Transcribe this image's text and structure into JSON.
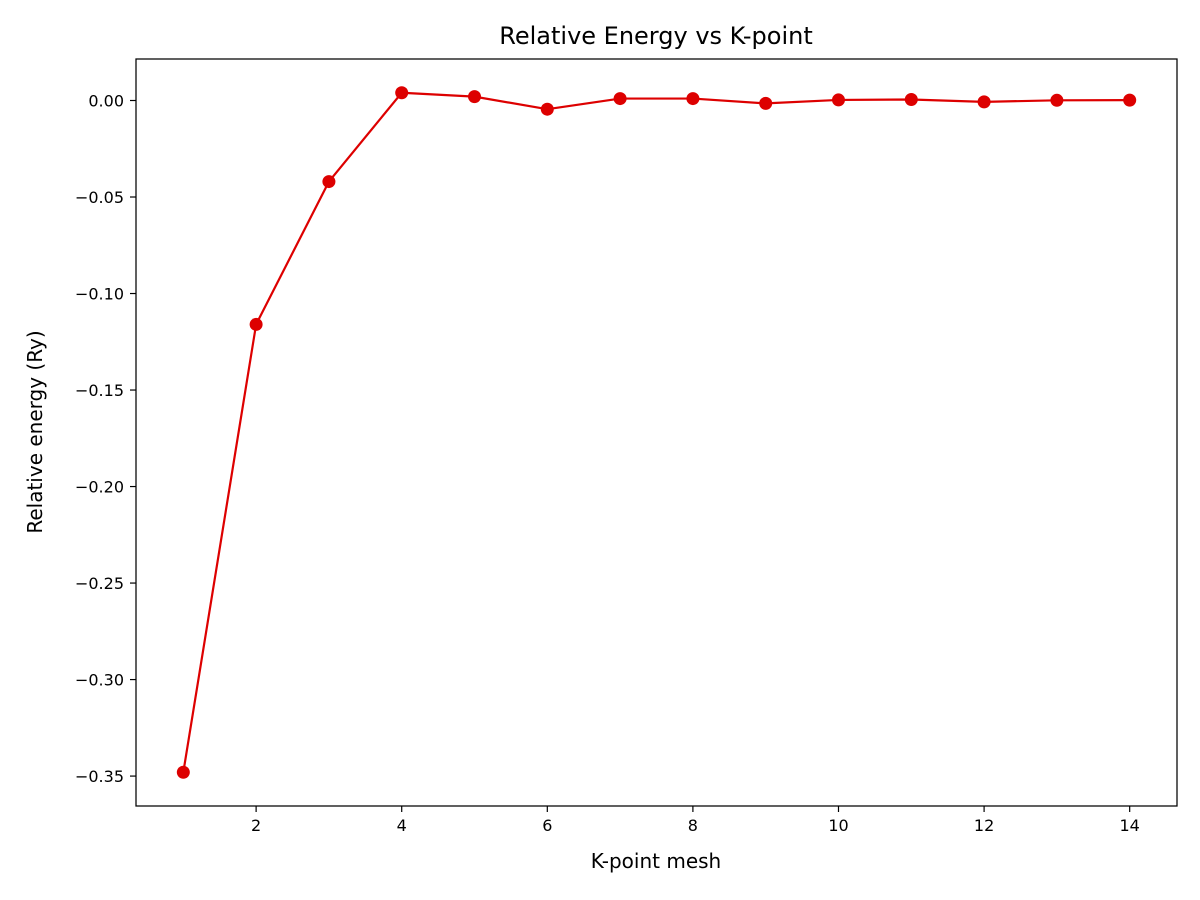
{
  "chart_data": {
    "type": "line",
    "title": "Relative Energy vs K-point",
    "xlabel": "K-point mesh",
    "ylabel": "Relative energy (Ry)",
    "x": [
      1,
      2,
      3,
      4,
      5,
      6,
      7,
      8,
      9,
      10,
      11,
      12,
      13,
      14
    ],
    "series": [
      {
        "values": [
          -0.348,
          -0.116,
          -0.042,
          0.004,
          0.002,
          -0.0045,
          0.001,
          0.001,
          -0.0015,
          0.0003,
          0.0005,
          -0.0007,
          0.0001,
          0.0002
        ],
        "color": "#dd0000",
        "marker": "circle"
      }
    ],
    "xlim": [
      0.35,
      14.65
    ],
    "ylim": [
      -0.3655,
      0.0215
    ],
    "xticks": [
      2,
      4,
      6,
      8,
      10,
      12,
      14
    ],
    "xtick_labels": [
      "2",
      "4",
      "6",
      "8",
      "10",
      "12",
      "14"
    ],
    "yticks": [
      0.0,
      -0.05,
      -0.1,
      -0.15,
      -0.2,
      -0.25,
      -0.3,
      -0.35
    ],
    "ytick_labels": [
      "0.00",
      "−0.05",
      "−0.10",
      "−0.15",
      "−0.20",
      "−0.25",
      "−0.30",
      "−0.35"
    ],
    "grid": false,
    "legend": "none"
  }
}
